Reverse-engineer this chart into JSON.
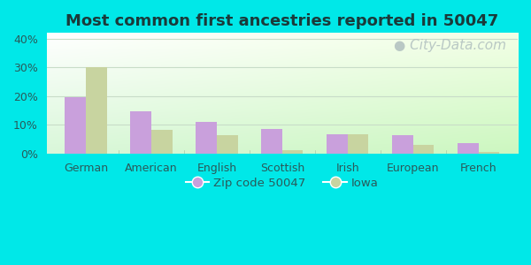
{
  "title": "Most common first ancestries reported in 50047",
  "categories": [
    "German",
    "American",
    "English",
    "Scottish",
    "Irish",
    "European",
    "French"
  ],
  "zip_values": [
    19.5,
    14.8,
    11.0,
    8.7,
    6.8,
    6.5,
    3.5
  ],
  "iowa_values": [
    30.0,
    8.3,
    6.5,
    1.2,
    6.8,
    3.0,
    0.7
  ],
  "zip_color": "#c9a0dc",
  "iowa_color": "#c8d4a0",
  "ylim": [
    0,
    42
  ],
  "yticks": [
    0,
    10,
    20,
    30,
    40
  ],
  "ytick_labels": [
    "0%",
    "10%",
    "20%",
    "30%",
    "40%"
  ],
  "legend_zip": "Zip code 50047",
  "legend_iowa": "Iowa",
  "outer_bg": "#00e8e8",
  "bar_width": 0.32,
  "title_fontsize": 13,
  "axis_fontsize": 9,
  "legend_fontsize": 9.5,
  "title_color": "#1a3a3a",
  "tick_color": "#2a5a5a",
  "watermark_text": "City-Data.com",
  "watermark_color": "#b0bfbf",
  "watermark_fontsize": 11,
  "grid_color": "#c8dcc8",
  "bg_left_top": "#ffffff",
  "bg_right_bottom": "#c8e8c0"
}
